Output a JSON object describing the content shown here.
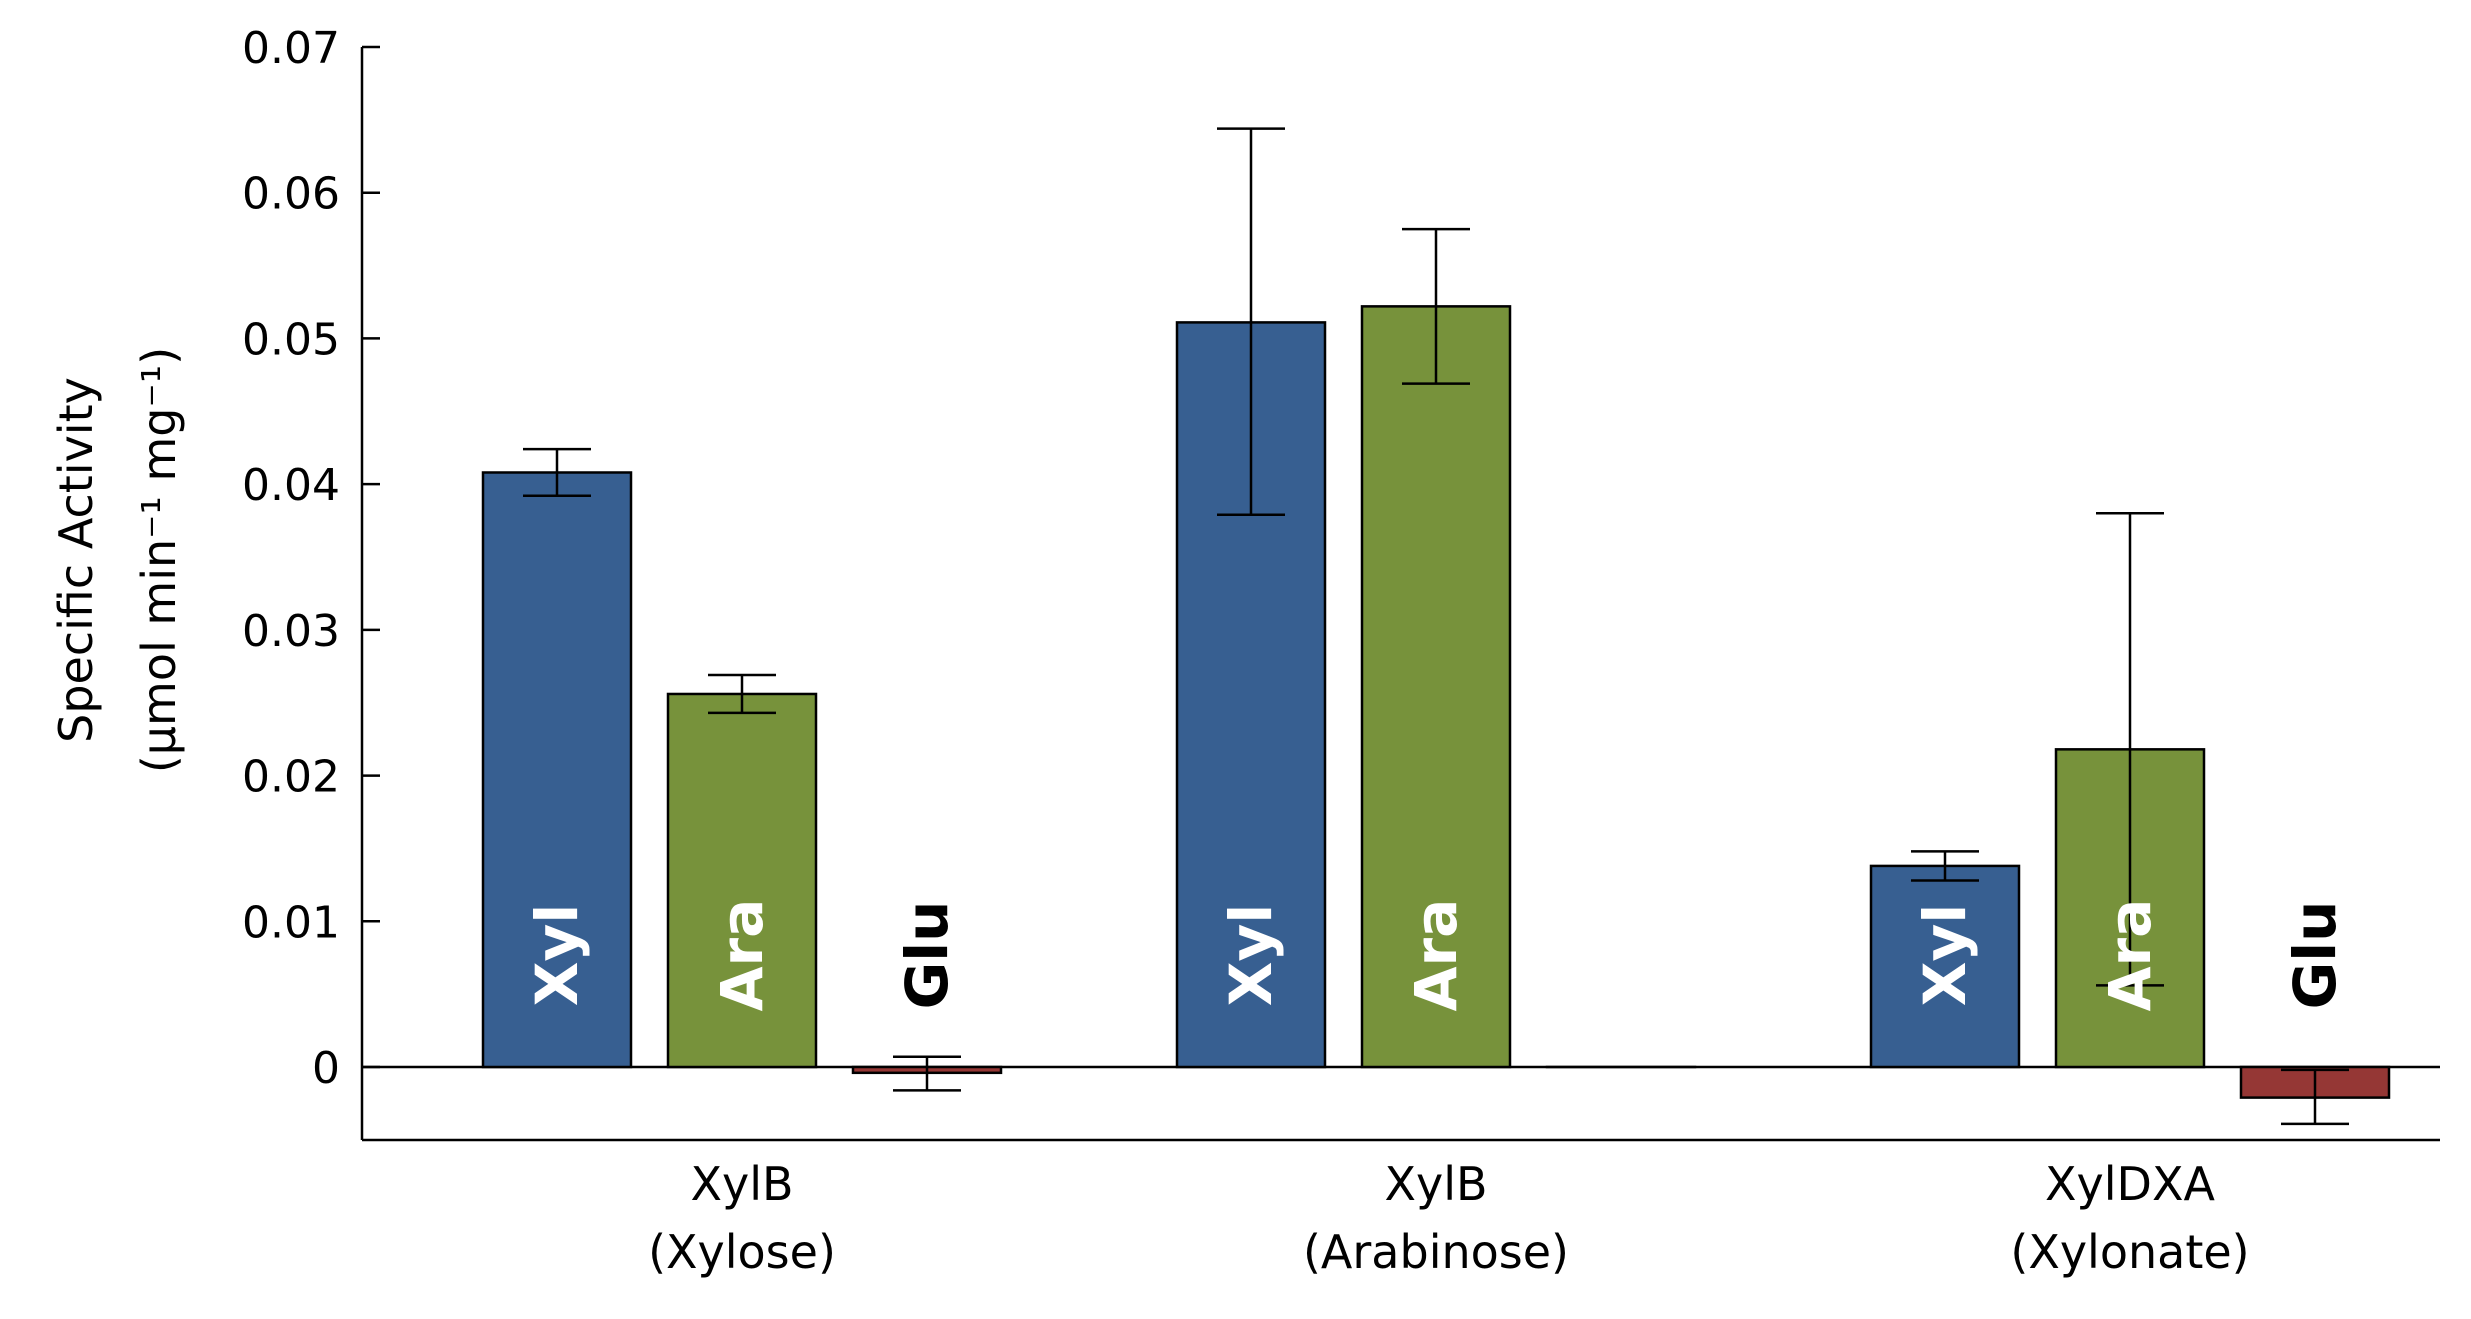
{
  "chart_data": {
    "type": "bar",
    "categories": [
      {
        "line1": "XylB",
        "line2": "(Xylose)"
      },
      {
        "line1": "XylB",
        "line2": "(Arabinose)"
      },
      {
        "line1": "XylDXA",
        "line2": "(Xylonate)"
      }
    ],
    "ylabel_line1": "Specific Activity",
    "ylabel_line2": "(μmol min⁻¹ mg⁻¹)",
    "ylim": [
      -0.005,
      0.07
    ],
    "yticks": [
      0,
      0.01,
      0.02,
      0.03,
      0.04,
      0.05,
      0.06,
      0.07
    ],
    "ytick_labels": [
      "0",
      "0.01",
      "0.02",
      "0.03",
      "0.04",
      "0.05",
      "0.06",
      "0.07"
    ],
    "series": [
      {
        "name": "Xyl",
        "color": "#375f91",
        "label_color": "#ffffff",
        "values": [
          0.0408,
          0.0511,
          0.0138
        ],
        "err_low": [
          0.0392,
          0.0379,
          0.0128
        ],
        "err_high": [
          0.0424,
          0.0644,
          0.0148
        ]
      },
      {
        "name": "Ara",
        "color": "#77923b",
        "label_color": "#ffffff",
        "values": [
          0.0256,
          0.0522,
          0.0218
        ],
        "err_low": [
          0.0243,
          0.0469,
          0.0056
        ],
        "err_high": [
          0.0269,
          0.0575,
          0.038
        ]
      },
      {
        "name": "Glu",
        "color": "#953735",
        "label_color": "#000000",
        "values": [
          -0.0004,
          0.0,
          -0.0021
        ],
        "err_low": [
          -0.0016,
          null,
          -0.0039
        ],
        "err_high": [
          0.0007,
          null,
          -0.0002
        ],
        "show_label": [
          true,
          false,
          true
        ]
      }
    ],
    "grid": false,
    "legend": "none"
  }
}
